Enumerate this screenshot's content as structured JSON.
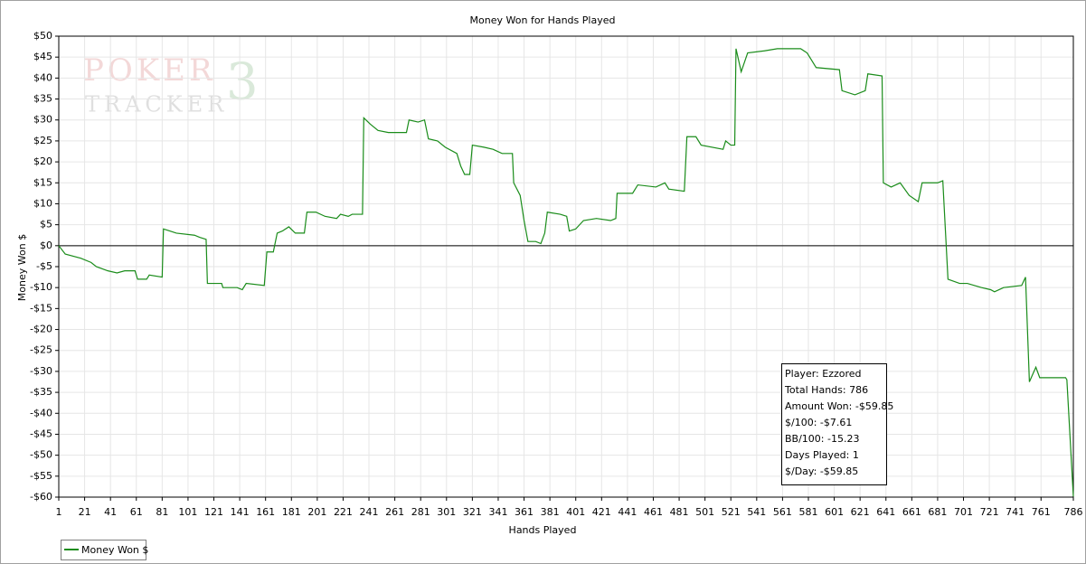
{
  "chart_data": {
    "type": "line",
    "title": "Money Won for Hands Played",
    "xlabel": "Hands Played",
    "ylabel": "Money Won $",
    "watermark": {
      "line1": "POKER",
      "line2": "TRACKER",
      "mark": "3"
    },
    "xlim": [
      1,
      786
    ],
    "ylim": [
      -60,
      50
    ],
    "xticks": [
      1,
      21,
      41,
      61,
      81,
      101,
      121,
      141,
      161,
      181,
      201,
      221,
      241,
      261,
      281,
      301,
      321,
      341,
      361,
      381,
      401,
      421,
      441,
      461,
      481,
      501,
      521,
      541,
      561,
      581,
      601,
      621,
      641,
      661,
      681,
      701,
      721,
      741,
      761,
      786
    ],
    "yticks": [
      {
        "value": 50,
        "label": "$50"
      },
      {
        "value": 45,
        "label": "$45"
      },
      {
        "value": 40,
        "label": "$40"
      },
      {
        "value": 35,
        "label": "$35"
      },
      {
        "value": 30,
        "label": "$30"
      },
      {
        "value": 25,
        "label": "$25"
      },
      {
        "value": 20,
        "label": "$20"
      },
      {
        "value": 15,
        "label": "$15"
      },
      {
        "value": 10,
        "label": "$10"
      },
      {
        "value": 5,
        "label": "$5"
      },
      {
        "value": 0,
        "label": "$0"
      },
      {
        "value": -5,
        "label": "-$5"
      },
      {
        "value": -10,
        "label": "-$10"
      },
      {
        "value": -15,
        "label": "-$15"
      },
      {
        "value": -20,
        "label": "-$20"
      },
      {
        "value": -25,
        "label": "-$25"
      },
      {
        "value": -30,
        "label": "-$30"
      },
      {
        "value": -35,
        "label": "-$35"
      },
      {
        "value": -40,
        "label": "-$40"
      },
      {
        "value": -45,
        "label": "-$45"
      },
      {
        "value": -50,
        "label": "-$50"
      },
      {
        "value": -55,
        "label": "-$55"
      },
      {
        "value": -60,
        "label": "-$60"
      }
    ],
    "grid": true,
    "x": [
      1,
      6,
      18,
      26,
      30,
      39,
      46,
      52,
      60,
      62,
      69,
      71,
      81,
      82,
      92,
      106,
      110,
      115,
      116,
      127,
      128,
      139,
      143,
      146,
      160,
      162,
      167,
      170,
      174,
      179,
      184,
      191,
      193,
      200,
      207,
      216,
      219,
      225,
      228,
      236,
      237,
      242,
      248,
      256,
      270,
      272,
      279,
      284,
      287,
      294,
      300,
      309,
      312,
      315,
      319,
      321,
      330,
      337,
      344,
      352,
      353,
      358,
      361,
      364,
      370,
      374,
      377,
      379,
      389,
      394,
      396,
      401,
      407,
      417,
      428,
      432,
      433,
      445,
      449,
      463,
      470,
      473,
      485,
      487,
      494,
      498,
      515,
      517,
      521,
      524,
      525,
      529,
      534,
      547,
      557,
      575,
      580,
      584,
      587,
      605,
      607,
      617,
      625,
      627,
      638,
      639,
      645,
      652,
      659,
      666,
      669,
      681,
      685,
      689,
      698,
      704,
      715,
      722,
      725,
      732,
      746,
      749,
      752,
      757,
      760,
      780,
      781,
      786
    ],
    "series": [
      {
        "name": "Money Won $",
        "color": "#1a8c1a",
        "values": [
          0,
          -2,
          -3,
          -4,
          -5,
          -6,
          -6.5,
          -6,
          -6,
          -8,
          -8,
          -7,
          -7.5,
          4,
          3,
          2.5,
          2,
          1.5,
          -9,
          -9,
          -10,
          -10,
          -10.5,
          -9,
          -9.5,
          -1.5,
          -1.5,
          3,
          3.5,
          4.5,
          3,
          3,
          8,
          8,
          7,
          6.5,
          7.5,
          7,
          7.5,
          7.5,
          30.5,
          29,
          27.5,
          27,
          27,
          30,
          29.5,
          30,
          25.5,
          25,
          23.5,
          22,
          19,
          17,
          17,
          24,
          23.5,
          23,
          22,
          22,
          15,
          12,
          6,
          1,
          1,
          0.5,
          3,
          8,
          7.5,
          7,
          3.5,
          4,
          6,
          6.5,
          6,
          6.5,
          12.5,
          12.5,
          14.5,
          14,
          15,
          13.5,
          13,
          26,
          26,
          24,
          23,
          25,
          24,
          24,
          47,
          41.5,
          46,
          46.5,
          47,
          47,
          46,
          44,
          42.5,
          42,
          37,
          36,
          37,
          41,
          40.5,
          15,
          14,
          15,
          12,
          10.5,
          15,
          15,
          15.5,
          -8,
          -9,
          -9,
          -10,
          -10.5,
          -11,
          -10,
          -9.5,
          -7.5,
          -32.5,
          -29,
          -31.5,
          -31.5,
          -32,
          -59.85
        ]
      }
    ],
    "legend": "bottom-left",
    "stats": [
      "Player: Ezzored",
      "Total Hands: 786",
      "Amount Won: -$59.85",
      "$/100: -$7.61",
      "BB/100: -15.23",
      "Days Played: 1",
      "$/Day: -$59.85"
    ]
  }
}
